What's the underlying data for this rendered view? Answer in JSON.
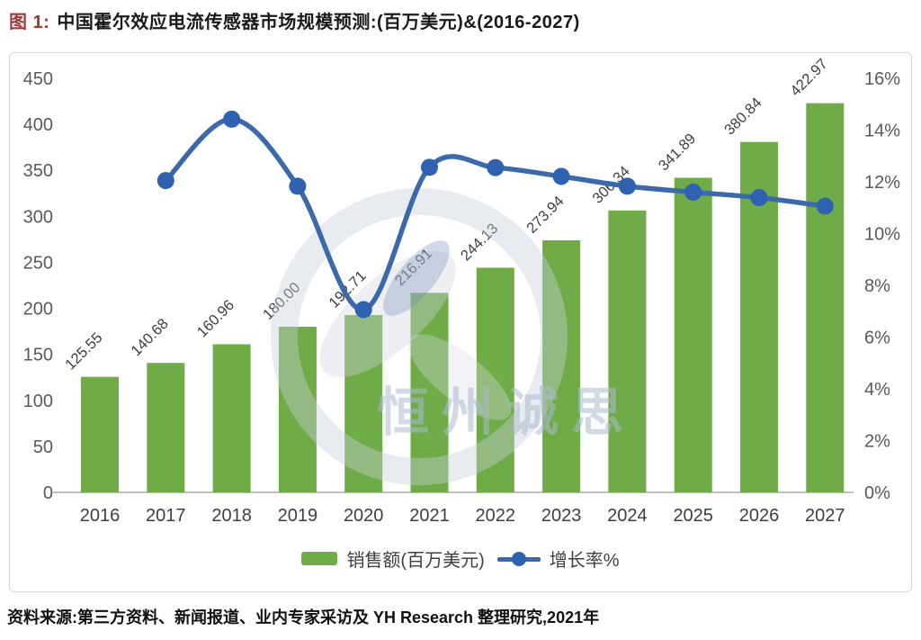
{
  "title": {
    "prefix": "图 1:",
    "text": "中国霍尔效应电流传感器市场规模预测:(百万美元)&(2016-2027)"
  },
  "source": "资料来源:第三方资料、新闻报道、业内专家采访及 YH Research 整理研究,2021年",
  "watermark": {
    "text": "恒州诚思"
  },
  "legend": {
    "bar_label": "销售额(百万美元)",
    "line_label": "增长率%"
  },
  "colors": {
    "bar": "#6fab47",
    "line": "#3b69a9",
    "marker": "#2e62b0",
    "axis_text": "#595959",
    "label_text": "#3f3f3f",
    "axis_line": "#bfbfbf",
    "title_prefix": "#a23834"
  },
  "chart_data": {
    "type": "bar+line combo",
    "title": "中国霍尔效应电流传感器市场规模预测:(百万美元)&(2016-2027)",
    "categories": [
      "2016",
      "2017",
      "2018",
      "2019",
      "2020",
      "2021",
      "2022",
      "2023",
      "2024",
      "2025",
      "2026",
      "2027"
    ],
    "series": [
      {
        "name": "销售额(百万美元)",
        "type": "bar",
        "axis": "left",
        "values": [
          125.55,
          140.68,
          160.96,
          180.0,
          192.71,
          216.91,
          244.13,
          273.94,
          306.34,
          341.89,
          380.84,
          422.97
        ],
        "data_labels": "shown, rotated 45deg above bars"
      },
      {
        "name": "增长率%",
        "type": "line",
        "axis": "right",
        "values": [
          null,
          12.05,
          14.42,
          11.83,
          7.06,
          12.56,
          12.55,
          12.21,
          11.83,
          11.6,
          11.39,
          11.06
        ],
        "note": "values estimated from right axis; no data labels printed"
      }
    ],
    "left_axis": {
      "min": 0,
      "max": 450,
      "step": 50,
      "ticks": [
        "0",
        "50",
        "100",
        "150",
        "200",
        "250",
        "300",
        "350",
        "400",
        "450"
      ]
    },
    "right_axis": {
      "min": 0,
      "max": 16,
      "step": 2,
      "suffix": "%",
      "ticks": [
        "0%",
        "2%",
        "4%",
        "6%",
        "8%",
        "10%",
        "12%",
        "14%",
        "16%"
      ]
    },
    "grid": "off",
    "legend_position": "bottom-center"
  }
}
